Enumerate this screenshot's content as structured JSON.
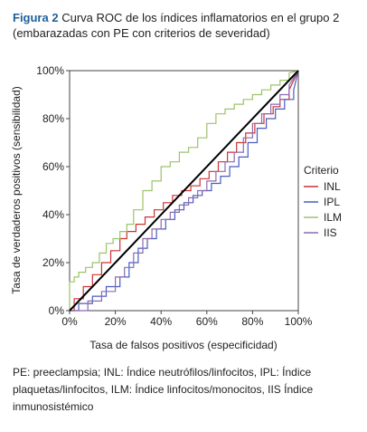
{
  "figure": {
    "number": "Figura 2",
    "title": "Curva ROC de los índices inflamatorios en el grupo 2 (embarazadas con PE con criterios de severidad)"
  },
  "footnote": "PE: preeclampsia; INL: Índice neutrófilos/linfocitos, IPL: Índice plaquetas/linfocitos, ILM: Índice linfocitos/monocitos, IIS Índice inmunosistémico",
  "chart_data": {
    "type": "line",
    "xlabel": "Tasa de falsos positivos (especificidad)",
    "ylabel": "Tasa de verdaderos positivos (sensibilidad)",
    "xlim": [
      0,
      100
    ],
    "ylim": [
      0,
      100
    ],
    "x_ticks": [
      "0%",
      "20%",
      "40%",
      "60%",
      "80%",
      "100%"
    ],
    "y_ticks": [
      "0%",
      "20%",
      "40%",
      "60%",
      "80%",
      "100%"
    ],
    "grid": false,
    "legend_title": "Criterio",
    "legend_position": "right",
    "reference_line": {
      "x": [
        0,
        100
      ],
      "y": [
        0,
        100
      ],
      "color": "#000000"
    },
    "series": [
      {
        "name": "INL",
        "color": "#cc3333",
        "x": [
          0,
          2,
          2,
          6,
          6,
          10,
          10,
          14,
          14,
          18,
          18,
          22,
          22,
          25,
          25,
          29,
          29,
          33,
          33,
          37,
          37,
          41,
          41,
          45,
          45,
          49,
          49,
          53,
          53,
          57,
          57,
          61,
          61,
          65,
          65,
          69,
          69,
          73,
          73,
          77,
          77,
          81,
          81,
          85,
          85,
          89,
          89,
          92,
          92,
          96,
          96,
          100
        ],
        "y": [
          0,
          0,
          5,
          5,
          10,
          10,
          15,
          15,
          20,
          20,
          25,
          25,
          30,
          30,
          33,
          33,
          36,
          36,
          39,
          39,
          42,
          42,
          45,
          45,
          48,
          48,
          50,
          50,
          52,
          52,
          55,
          55,
          58,
          58,
          62,
          62,
          66,
          66,
          70,
          70,
          74,
          74,
          78,
          78,
          82,
          82,
          85,
          85,
          88,
          88,
          92,
          100
        ]
      },
      {
        "name": "IPL",
        "color": "#4a5cc0",
        "x": [
          0,
          4,
          4,
          10,
          10,
          16,
          16,
          22,
          22,
          26,
          26,
          30,
          30,
          34,
          34,
          38,
          38,
          42,
          42,
          46,
          46,
          50,
          50,
          54,
          54,
          58,
          58,
          62,
          62,
          66,
          66,
          70,
          70,
          74,
          74,
          78,
          78,
          82,
          82,
          86,
          86,
          90,
          90,
          94,
          94,
          98,
          98,
          100
        ],
        "y": [
          0,
          0,
          3,
          3,
          6,
          6,
          10,
          10,
          14,
          14,
          20,
          20,
          26,
          26,
          30,
          30,
          34,
          34,
          38,
          38,
          42,
          42,
          45,
          45,
          48,
          48,
          50,
          50,
          53,
          53,
          56,
          56,
          60,
          60,
          64,
          64,
          70,
          70,
          76,
          76,
          80,
          80,
          84,
          84,
          88,
          88,
          92,
          100
        ]
      },
      {
        "name": "ILM",
        "color": "#9dc26a",
        "x": [
          0,
          0,
          2,
          2,
          4,
          4,
          7,
          7,
          10,
          10,
          13,
          13,
          16,
          16,
          19,
          19,
          22,
          22,
          25,
          25,
          28,
          28,
          32,
          32,
          36,
          36,
          40,
          40,
          44,
          44,
          48,
          48,
          52,
          52,
          56,
          56,
          60,
          60,
          64,
          64,
          68,
          68,
          72,
          72,
          76,
          76,
          80,
          80,
          84,
          84,
          88,
          88,
          92,
          92,
          96,
          96,
          100
        ],
        "y": [
          0,
          12,
          12,
          14,
          14,
          16,
          16,
          18,
          18,
          20,
          20,
          24,
          24,
          28,
          28,
          30,
          30,
          33,
          33,
          36,
          36,
          42,
          42,
          50,
          50,
          54,
          54,
          60,
          60,
          62,
          62,
          66,
          66,
          68,
          68,
          72,
          72,
          78,
          78,
          82,
          82,
          84,
          84,
          86,
          86,
          88,
          88,
          90,
          90,
          92,
          92,
          94,
          94,
          96,
          96,
          99,
          100
        ]
      },
      {
        "name": "IIS",
        "color": "#8c6bb0",
        "x": [
          0,
          8,
          8,
          14,
          14,
          20,
          20,
          24,
          24,
          28,
          28,
          32,
          32,
          36,
          36,
          40,
          40,
          44,
          44,
          48,
          48,
          52,
          52,
          56,
          56,
          60,
          60,
          64,
          64,
          68,
          68,
          72,
          72,
          76,
          76,
          80,
          80,
          84,
          84,
          88,
          88,
          92,
          92,
          96,
          96,
          100
        ],
        "y": [
          0,
          0,
          4,
          4,
          8,
          8,
          14,
          14,
          18,
          18,
          24,
          24,
          30,
          30,
          34,
          34,
          38,
          38,
          41,
          41,
          44,
          44,
          47,
          47,
          50,
          50,
          54,
          54,
          58,
          58,
          62,
          62,
          66,
          66,
          72,
          72,
          78,
          78,
          82,
          82,
          86,
          86,
          90,
          90,
          94,
          100
        ]
      }
    ]
  }
}
